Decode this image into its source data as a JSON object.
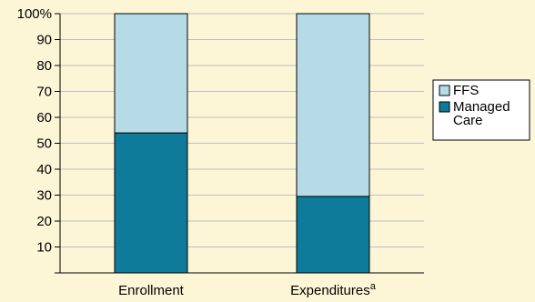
{
  "chart_data": {
    "type": "bar",
    "stacked": true,
    "categories": [
      "Enrollment",
      "Expenditures"
    ],
    "category_superscripts": [
      "",
      "a"
    ],
    "series": [
      {
        "name": "Managed Care",
        "values": [
          54,
          29.5
        ],
        "color": "#0e7b9a"
      },
      {
        "name": "FFS",
        "values": [
          46,
          70.5
        ],
        "color": "#b7dbe6"
      }
    ],
    "legend_entries": [
      {
        "series": "FFS",
        "lines": [
          "FFS"
        ]
      },
      {
        "series": "Managed Care",
        "lines": [
          "Managed",
          "Care"
        ]
      }
    ],
    "yticks": [
      10,
      20,
      30,
      40,
      50,
      60,
      70,
      80,
      90,
      100
    ],
    "ytick_labels": [
      "10",
      "20",
      "30",
      "40",
      "50",
      "60",
      "70",
      "80",
      "90",
      "100%"
    ],
    "ylim": [
      0,
      100
    ],
    "grid": true,
    "grid_color": "#bfbfbf",
    "legend_position": "right",
    "background_color": "#fdf6d6"
  }
}
